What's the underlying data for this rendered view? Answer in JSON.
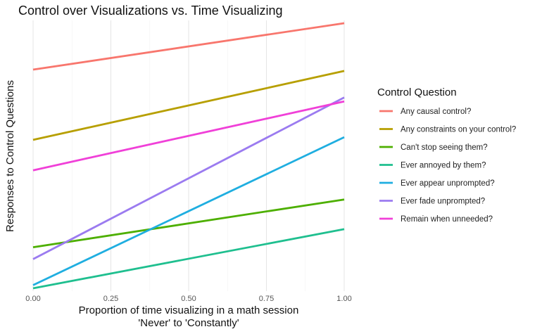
{
  "chart_data": {
    "type": "line",
    "title": "Control over Visualizations vs. Time Visualizing",
    "xlabel_line1": "Proportion of time visualizing in a math session",
    "xlabel_line2": "'Never' to 'Constantly'",
    "ylabel": "Responses to Control Questions",
    "xlim": [
      0,
      1
    ],
    "ylim": [
      0,
      1
    ],
    "x_ticks": [
      0,
      0.25,
      0.5,
      0.75,
      1
    ],
    "x_tick_labels": [
      "0.00",
      "0.25",
      "0.50",
      "0.75",
      "1.00"
    ],
    "grid": true,
    "legend": {
      "title": "Control Question",
      "position": "right"
    },
    "series": [
      {
        "name": "Any causal control?",
        "color": "#F8766D",
        "x": [
          0,
          1
        ],
        "y": [
          0.825,
          1.0
        ]
      },
      {
        "name": "Any constraints on your control?",
        "color": "#B79F00",
        "x": [
          0,
          1
        ],
        "y": [
          0.56,
          0.82
        ]
      },
      {
        "name": "Can't stop seeing them?",
        "color": "#4DAF00",
        "x": [
          0,
          1
        ],
        "y": [
          0.155,
          0.335
        ]
      },
      {
        "name": "Ever annoyed by them?",
        "color": "#1FBF8F",
        "x": [
          0,
          1
        ],
        "y": [
          0.0,
          0.223
        ]
      },
      {
        "name": "Ever appear unprompted?",
        "color": "#1FAEE0",
        "x": [
          0,
          1
        ],
        "y": [
          0.012,
          0.57
        ]
      },
      {
        "name": "Ever fade unprompted?",
        "color": "#9B7BF0",
        "x": [
          0,
          1
        ],
        "y": [
          0.11,
          0.72
        ]
      },
      {
        "name": "Remain when unneeded?",
        "color": "#F040D8",
        "x": [
          0,
          1
        ],
        "y": [
          0.445,
          0.705
        ]
      }
    ]
  }
}
